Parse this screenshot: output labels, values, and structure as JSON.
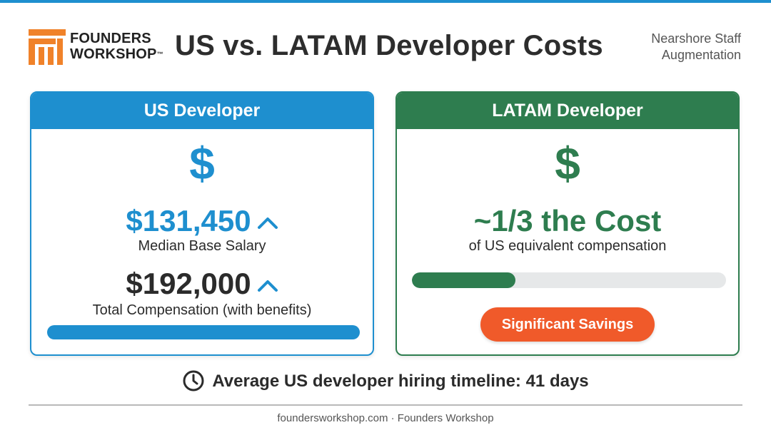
{
  "header": {
    "logo_line1": "FOUNDERS",
    "logo_line2": "WORKSHOP",
    "logo_tm": "™",
    "title": "US vs. LATAM Developer Costs",
    "subtitle_line1": "Nearshore Staff",
    "subtitle_line2": "Augmentation"
  },
  "us_card": {
    "heading": "US Developer",
    "icon": "dollar-icon",
    "symbol": "$",
    "salary": "$131,450",
    "salary_label": "Median Base Salary",
    "total": "$192,000",
    "total_label": "Total Compensation (with benefits)",
    "bar_fraction": 1.0
  },
  "latam_card": {
    "heading": "LATAM Developer",
    "icon": "dollar-icon",
    "symbol": "$",
    "value": "~1/3 the Cost",
    "value_label": "of US equivalent compensation",
    "bar_fraction": 0.33,
    "badge": "Significant Savings"
  },
  "timeline": {
    "icon": "clock-icon",
    "text": "Average US developer hiring timeline: 41 days"
  },
  "footer": {
    "text": "foundersworkshop.com · Founders Workshop"
  },
  "colors": {
    "us_blue": "#1e8fcf",
    "latam_green": "#2e7d4f",
    "savings_orange": "#f05a2a",
    "logo_orange": "#f0822a"
  }
}
